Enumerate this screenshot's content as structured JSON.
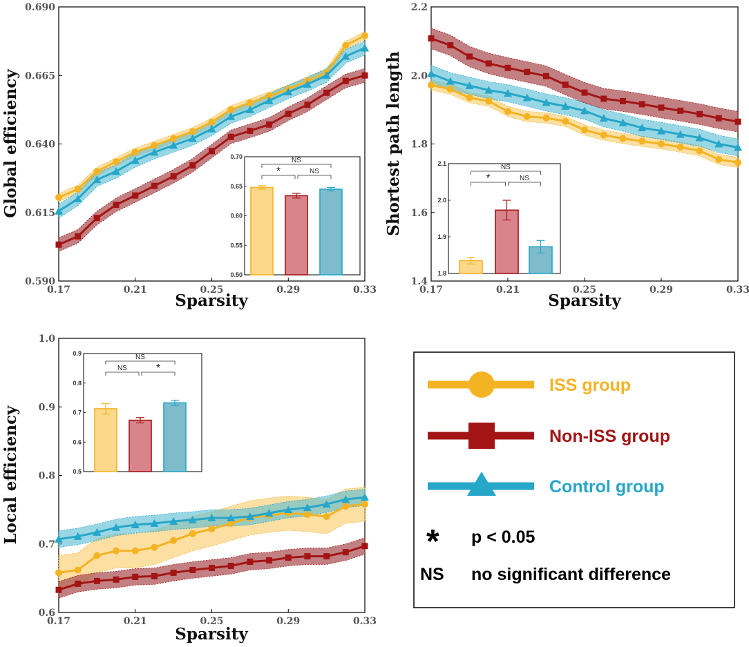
{
  "colors": {
    "iss": "#F4B323",
    "iss_band": "#F7C558",
    "iss_bar": "#FBD88A",
    "non_iss": "#A31515",
    "non_iss_band": "#A84A4E",
    "non_iss_bar": "#D9848A",
    "control": "#26A6C9",
    "control_band": "#57BDD4",
    "control_bar": "#7EBCCB"
  },
  "chart_data": [
    {
      "type": "line",
      "xlabel": "Sparsity",
      "ylabel": "Global efficiency",
      "x": [
        0.17,
        0.18,
        0.19,
        0.2,
        0.21,
        0.22,
        0.23,
        0.24,
        0.25,
        0.26,
        0.27,
        0.28,
        0.29,
        0.3,
        0.31,
        0.32,
        0.33
      ],
      "xticks": [
        "0.17",
        "0.21",
        "0.25",
        "0.29",
        "0.33"
      ],
      "yticks": [
        "0.590",
        "0.615",
        "0.640",
        "0.665",
        "0.690"
      ],
      "ylim": [
        0.59,
        0.69
      ],
      "series": [
        {
          "name": "ISS group",
          "values": [
            0.6205,
            0.6235,
            0.63,
            0.6335,
            0.637,
            0.6395,
            0.642,
            0.6445,
            0.648,
            0.6525,
            0.655,
            0.6575,
            0.66,
            0.663,
            0.666,
            0.676,
            0.6795
          ],
          "band": 0.0015
        },
        {
          "name": "Non-ISS group",
          "values": [
            0.6033,
            0.6063,
            0.613,
            0.6178,
            0.6212,
            0.6247,
            0.6282,
            0.6322,
            0.6374,
            0.6426,
            0.6448,
            0.6471,
            0.651,
            0.6543,
            0.6587,
            0.663,
            0.665
          ],
          "band": 0.0025
        },
        {
          "name": "Control group",
          "values": [
            0.6155,
            0.62,
            0.627,
            0.63,
            0.634,
            0.637,
            0.6395,
            0.642,
            0.6455,
            0.65,
            0.6525,
            0.6558,
            0.659,
            0.6618,
            0.665,
            0.672,
            0.675
          ],
          "band": 0.0025
        }
      ],
      "inset": {
        "type": "bar",
        "categories": [
          "ISS group",
          "Non-ISS group",
          "Control group"
        ],
        "values": [
          0.648,
          0.634,
          0.645
        ],
        "errors": [
          0.003,
          0.004,
          0.003
        ],
        "ylim": [
          0.5,
          0.7
        ],
        "yticks": [
          "0.50",
          "0.55",
          "0.60",
          "0.65",
          "0.70"
        ],
        "sig": [
          {
            "a": 0,
            "b": 1,
            "label": "*",
            "level": 1
          },
          {
            "a": 1,
            "b": 2,
            "label": "NS",
            "level": 1
          },
          {
            "a": 0,
            "b": 2,
            "label": "NS",
            "level": 2
          }
        ]
      }
    },
    {
      "type": "line",
      "xlabel": "Sparsity",
      "ylabel": "Shortest path length",
      "x": [
        0.17,
        0.18,
        0.19,
        0.2,
        0.21,
        0.22,
        0.23,
        0.24,
        0.25,
        0.26,
        0.27,
        0.28,
        0.29,
        0.3,
        0.31,
        0.32,
        0.33
      ],
      "xticks": [
        "0.17",
        "0.21",
        "0.25",
        "0.29",
        "0.33"
      ],
      "yticks": [
        "1.4",
        "1.6",
        "1.8",
        "2.0",
        "2.2"
      ],
      "ylim": [
        1.4,
        2.2
      ],
      "series": [
        {
          "name": "ISS group",
          "values": [
            1.972,
            1.96,
            1.935,
            1.925,
            1.895,
            1.88,
            1.876,
            1.866,
            1.841,
            1.826,
            1.816,
            1.808,
            1.8,
            1.791,
            1.78,
            1.755,
            1.746
          ],
          "band": 0.015
        },
        {
          "name": "Non-ISS group",
          "values": [
            2.108,
            2.088,
            2.055,
            2.035,
            2.022,
            2.01,
            1.998,
            1.973,
            1.95,
            1.932,
            1.925,
            1.916,
            1.906,
            1.897,
            1.887,
            1.875,
            1.865
          ],
          "band": 0.03
        },
        {
          "name": "Control group",
          "values": [
            2.005,
            1.983,
            1.97,
            1.957,
            1.948,
            1.935,
            1.921,
            1.91,
            1.897,
            1.875,
            1.862,
            1.847,
            1.838,
            1.828,
            1.818,
            1.8,
            1.79
          ],
          "band": 0.025
        }
      ],
      "inset": {
        "type": "bar",
        "categories": [
          "ISS group",
          "Non-ISS group",
          "Control group"
        ],
        "values": [
          1.835,
          1.973,
          1.873
        ],
        "errors": [
          0.009,
          0.027,
          0.017
        ],
        "ylim": [
          1.8,
          2.1
        ],
        "yticks": [
          "1.8",
          "1.9",
          "2.0",
          "2.1"
        ],
        "sig": [
          {
            "a": 0,
            "b": 1,
            "label": "*",
            "level": 1
          },
          {
            "a": 1,
            "b": 2,
            "label": "NS",
            "level": 1
          },
          {
            "a": 0,
            "b": 2,
            "label": "NS",
            "level": 2
          }
        ]
      }
    },
    {
      "type": "line",
      "xlabel": "Sparsity",
      "ylabel": "Local efficiency",
      "x": [
        0.17,
        0.18,
        0.19,
        0.2,
        0.21,
        0.22,
        0.23,
        0.24,
        0.25,
        0.26,
        0.27,
        0.28,
        0.29,
        0.3,
        0.31,
        0.32,
        0.33
      ],
      "xticks": [
        "0.17",
        "0.21",
        "0.25",
        "0.29",
        "0.33"
      ],
      "yticks": [
        "0.6",
        "0.7",
        "0.8",
        "0.9",
        "1.0"
      ],
      "ylim": [
        0.6,
        1.0
      ],
      "series": [
        {
          "name": "ISS group",
          "values": [
            0.658,
            0.662,
            0.683,
            0.69,
            0.69,
            0.695,
            0.705,
            0.715,
            0.722,
            0.73,
            0.738,
            0.742,
            0.745,
            0.743,
            0.74,
            0.755,
            0.758
          ],
          "band": 0.025
        },
        {
          "name": "Non-ISS group",
          "values": [
            0.633,
            0.642,
            0.646,
            0.648,
            0.652,
            0.653,
            0.658,
            0.662,
            0.665,
            0.668,
            0.674,
            0.676,
            0.68,
            0.682,
            0.682,
            0.688,
            0.697
          ],
          "band": 0.012
        },
        {
          "name": "Control group",
          "values": [
            0.707,
            0.711,
            0.717,
            0.724,
            0.728,
            0.73,
            0.733,
            0.735,
            0.738,
            0.738,
            0.74,
            0.745,
            0.75,
            0.753,
            0.758,
            0.765,
            0.768
          ],
          "band": 0.012
        }
      ],
      "inset": {
        "type": "bar",
        "categories": [
          "ISS group",
          "Non-ISS group",
          "Control group"
        ],
        "values": [
          0.713,
          0.674,
          0.733
        ],
        "errors": [
          0.018,
          0.009,
          0.009
        ],
        "ylim": [
          0.5,
          0.9
        ],
        "yticks": [
          "0.5",
          "0.6",
          "0.7",
          "0.8",
          "0.9"
        ],
        "sig": [
          {
            "a": 0,
            "b": 1,
            "label": "NS",
            "level": 1
          },
          {
            "a": 1,
            "b": 2,
            "label": "*",
            "level": 1
          },
          {
            "a": 0,
            "b": 2,
            "label": "NS",
            "level": 2
          }
        ]
      }
    }
  ],
  "legend": {
    "items": [
      {
        "label": "ISS group",
        "marker": "circle"
      },
      {
        "label": "Non-ISS group",
        "marker": "square"
      },
      {
        "label": "Control group",
        "marker": "triangle"
      }
    ],
    "star_symbol": "*",
    "star_text": "p < 0.05",
    "ns_symbol": "NS",
    "ns_text": "no significant difference"
  }
}
